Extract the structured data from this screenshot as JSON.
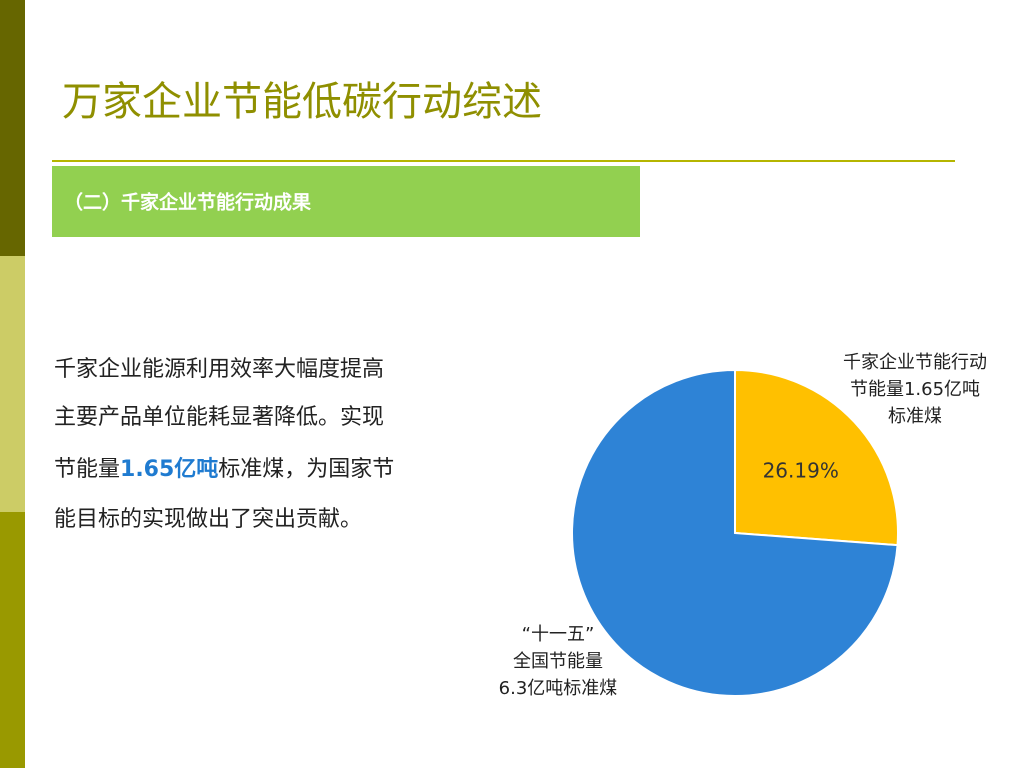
{
  "header": {
    "title": "万家企业节能低碳行动综述",
    "subtitle": "（二）千家企业节能行动成果"
  },
  "body": [
    "千家企业能源利用效率大幅度提高",
    "主要产品单位能耗显著降低。实现",
    [
      "节能量",
      "1.65亿吨",
      "标准煤，为国家节"
    ],
    "能目标的实现做出了突出贡献。"
  ],
  "chart_data": {
    "type": "pie",
    "categories": [
      [
        "千家企业节能行动",
        "节能量1.65亿吨",
        "标准煤"
      ],
      [
        "“十一五”",
        "全国节能量",
        "6.3亿吨标准煤"
      ]
    ],
    "values": [
      26.19,
      73.81
    ],
    "value_labels": [
      "26.19%",
      null
    ],
    "colors": [
      "#ffc000",
      "#2e83d6"
    ]
  }
}
